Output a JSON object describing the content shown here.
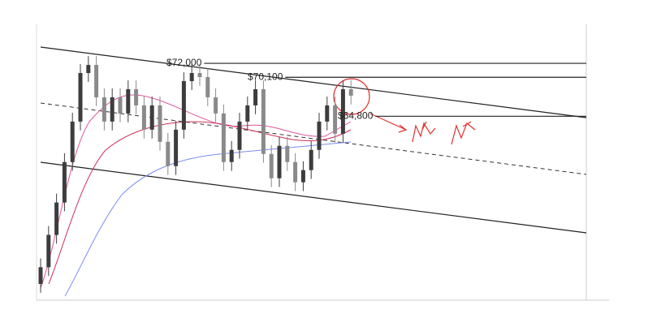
{
  "chart_data": {
    "type": "candlestick",
    "open": [
      42000,
      44280,
      48680,
      53080,
      58580,
      64080,
      70680,
      71780,
      67380,
      64080,
      67380,
      65180,
      68480,
      66280,
      62980,
      66280,
      61330,
      58030,
      62980,
      69580,
      70680,
      70130,
      67380,
      65180,
      58580,
      60230,
      64080,
      66280,
      68480,
      59680,
      56380,
      60780,
      58580,
      55830,
      57480,
      60230,
      64080,
      66280,
      62430,
      68480
    ],
    "high": [
      45480,
      49880,
      54280,
      59780,
      65280,
      71880,
      72980,
      72980,
      68580,
      68580,
      68580,
      69680,
      69680,
      67480,
      67480,
      67480,
      62530,
      64180,
      70780,
      71880,
      71880,
      71330,
      68580,
      66380,
      61430,
      65280,
      67480,
      69680,
      69680,
      60880,
      61980,
      61980,
      59780,
      58680,
      61430,
      65280,
      67480,
      67480,
      69680,
      69680
    ],
    "low": [
      40800,
      43080,
      47480,
      51880,
      57380,
      62880,
      69480,
      66180,
      62880,
      62880,
      63980,
      63980,
      65080,
      61780,
      61780,
      60130,
      56830,
      56830,
      61780,
      68380,
      68930,
      66180,
      63980,
      57380,
      57380,
      59030,
      62880,
      65080,
      58480,
      55180,
      55180,
      57380,
      54630,
      54630,
      56280,
      59030,
      62880,
      61230,
      61230,
      66400
    ],
    "close": [
      44280,
      48680,
      53080,
      58580,
      64080,
      70680,
      71780,
      67380,
      64080,
      67380,
      65180,
      68480,
      66280,
      62980,
      66280,
      61330,
      58030,
      62980,
      69580,
      70680,
      70130,
      67380,
      65180,
      58580,
      60230,
      64080,
      66280,
      68480,
      59680,
      56380,
      60780,
      58580,
      55830,
      57480,
      60230,
      64080,
      66280,
      62430,
      68480,
      67600
    ],
    "up_color": "#3d3d3d",
    "down_color": "#8a8a8a",
    "ylim": [
      39800,
      77300
    ],
    "levels": [
      {
        "value": 72000,
        "label": "$72,000"
      },
      {
        "value": 70100,
        "label": "$70,100"
      },
      {
        "value": 64800,
        "label": "$64,800"
      }
    ],
    "level_color": "#222222"
  }
}
